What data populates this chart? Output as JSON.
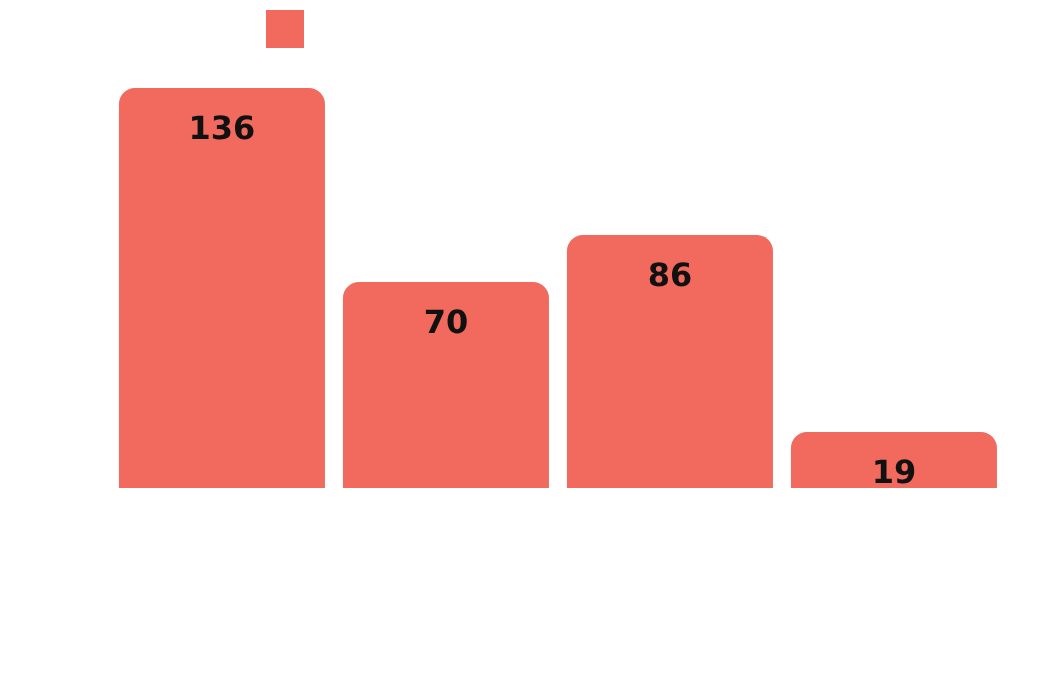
{
  "chart_data": {
    "type": "bar",
    "categories": [
      null,
      null,
      null,
      null
    ],
    "series": [
      {
        "color": "#f26a5d",
        "values": [
          136,
          70,
          86,
          19
        ]
      }
    ],
    "data_labels": true
  }
}
